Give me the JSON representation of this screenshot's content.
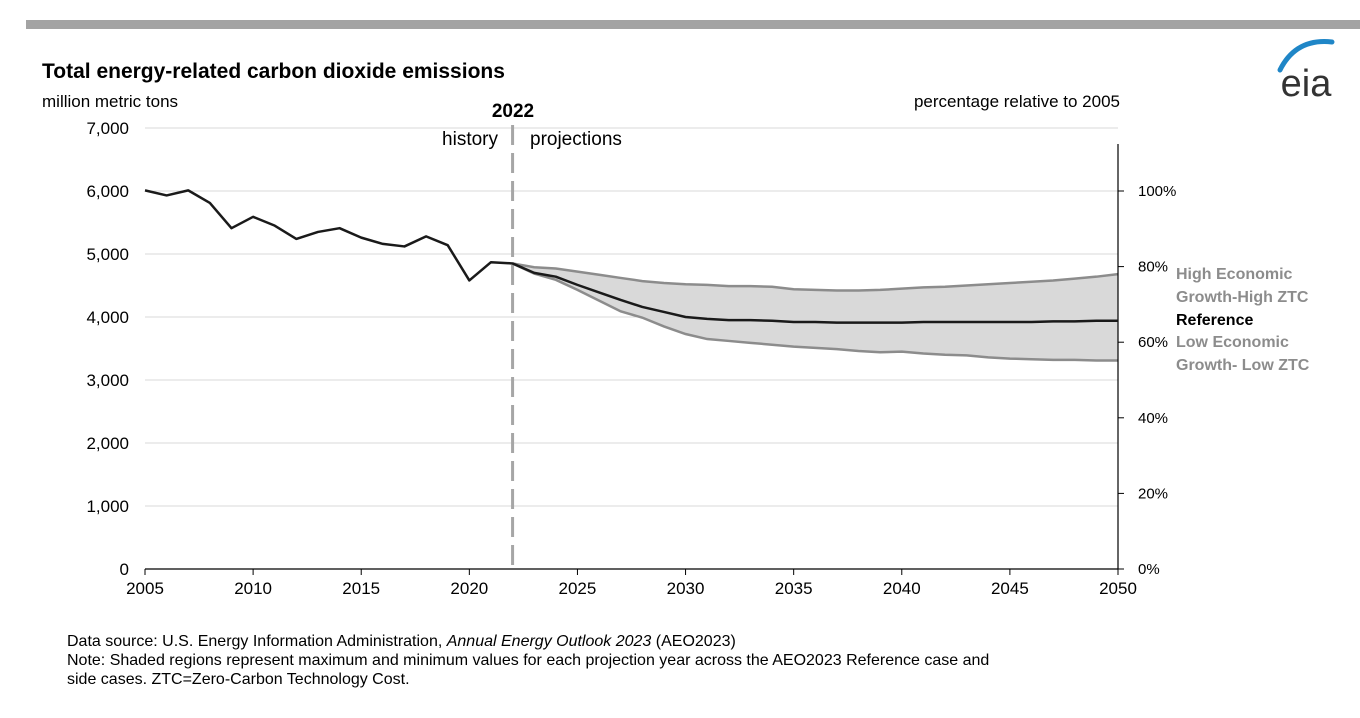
{
  "title": "Total energy-related carbon dioxide emissions",
  "colors": {
    "topbar": "#a3a3a3",
    "reference_line": "#1a1a1a",
    "band_fill": "#d9d9d9",
    "band_edge": "#8c8c8c",
    "logo_blue": "#1f86c7",
    "logo_text": "#333333",
    "divider": "#a6a6a6"
  },
  "logo": {
    "text": "eia",
    "icon": "eia-logo-icon"
  },
  "chart_data": {
    "type": "line",
    "ylabel_left": "million metric tons",
    "ylabel_right": "percentage relative to 2005",
    "xlim": [
      2005,
      2050
    ],
    "ylim": [
      0,
      7000
    ],
    "y_ticks": [
      "0",
      "1,000",
      "2,000",
      "3,000",
      "4,000",
      "5,000",
      "6,000",
      "7,000"
    ],
    "x_ticks": [
      "2005",
      "2010",
      "2015",
      "2020",
      "2025",
      "2030",
      "2035",
      "2040",
      "2045",
      "2050"
    ],
    "right_axis_ticks": [
      "0%",
      "20%",
      "40%",
      "60%",
      "80%",
      "100%"
    ],
    "right_axis_ref": 6000,
    "grid": true,
    "divider": {
      "year": 2022,
      "label": "2022",
      "left_label": "history",
      "right_label": "projections"
    },
    "reference": {
      "name": "Reference",
      "x": [
        2005,
        2006,
        2007,
        2008,
        2009,
        2010,
        2011,
        2012,
        2013,
        2014,
        2015,
        2016,
        2017,
        2018,
        2019,
        2020,
        2021,
        2022,
        2023,
        2024,
        2025,
        2026,
        2027,
        2028,
        2029,
        2030,
        2031,
        2032,
        2033,
        2034,
        2035,
        2036,
        2037,
        2038,
        2039,
        2040,
        2041,
        2042,
        2043,
        2044,
        2045,
        2046,
        2047,
        2048,
        2049,
        2050
      ],
      "y": [
        6010,
        5930,
        6010,
        5810,
        5410,
        5590,
        5450,
        5240,
        5350,
        5410,
        5260,
        5160,
        5120,
        5280,
        5140,
        4580,
        4870,
        4850,
        4700,
        4640,
        4510,
        4390,
        4270,
        4160,
        4080,
        4000,
        3970,
        3950,
        3950,
        3940,
        3920,
        3920,
        3910,
        3910,
        3910,
        3910,
        3920,
        3920,
        3920,
        3920,
        3920,
        3920,
        3930,
        3930,
        3940,
        3940
      ]
    },
    "band": {
      "x": [
        2022,
        2023,
        2024,
        2025,
        2026,
        2027,
        2028,
        2029,
        2030,
        2031,
        2032,
        2033,
        2034,
        2035,
        2036,
        2037,
        2038,
        2039,
        2040,
        2041,
        2042,
        2043,
        2044,
        2045,
        2046,
        2047,
        2048,
        2049,
        2050
      ],
      "high": [
        4850,
        4790,
        4770,
        4720,
        4670,
        4620,
        4570,
        4540,
        4520,
        4510,
        4490,
        4490,
        4480,
        4440,
        4430,
        4420,
        4420,
        4430,
        4450,
        4470,
        4480,
        4500,
        4520,
        4540,
        4560,
        4580,
        4610,
        4640,
        4680
      ],
      "low": [
        4850,
        4690,
        4590,
        4430,
        4260,
        4090,
        3990,
        3850,
        3730,
        3650,
        3620,
        3590,
        3560,
        3530,
        3510,
        3490,
        3460,
        3440,
        3450,
        3420,
        3400,
        3390,
        3360,
        3340,
        3330,
        3320,
        3320,
        3310,
        3310
      ],
      "high_label_lines": [
        "High Economic",
        "Growth-High ZTC"
      ],
      "low_label_lines": [
        "Low Economic",
        "Growth- Low ZTC"
      ]
    }
  },
  "footer": {
    "source_prefix": "Data source: U.S. Energy Information Administration, ",
    "source_title": "Annual Energy Outlook 2023",
    "source_suffix": " (AEO2023)",
    "note_line1": "Note: Shaded regions represent maximum and minimum values for each projection year across the AEO2023 Reference case and",
    "note_line2": "side cases. ZTC=Zero-Carbon Technology Cost."
  }
}
